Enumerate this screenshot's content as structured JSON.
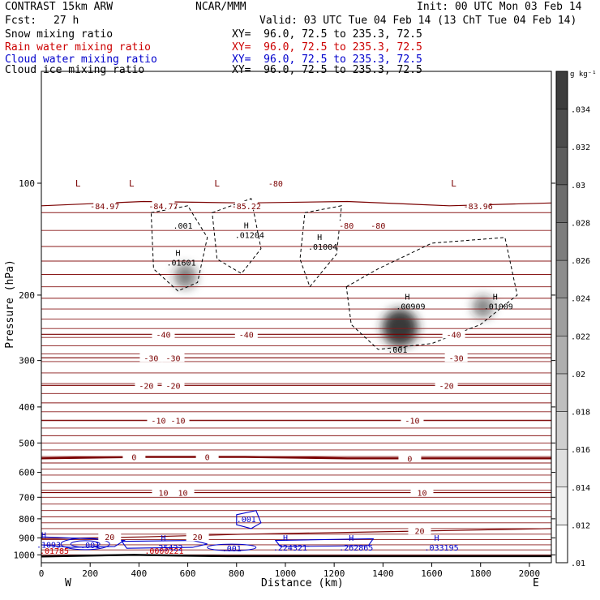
{
  "header": {
    "title": "CONTRAST 15km ARW",
    "center": "NCAR/MMM",
    "init": "Init: 00 UTC Mon 03 Feb 14",
    "fcst_label": "Fcst:",
    "fcst_value": "27 h",
    "valid": "Valid: 03 UTC Tue 04 Feb 14 (13 ChT Tue 04 Feb 14)"
  },
  "fields": [
    {
      "name": "Snow mixing ratio",
      "xy": "XY=  96.0, 72.5 to 235.3, 72.5",
      "color": "#000000"
    },
    {
      "name": "Rain water mixing ratio",
      "xy": "XY=  96.0, 72.5 to 235.3, 72.5",
      "color": "#cc0000"
    },
    {
      "name": "Cloud water mixing ratio",
      "xy": "XY=  96.0, 72.5 to 235.3, 72.5",
      "color": "#0000cc"
    },
    {
      "name": "Cloud ice mixing ratio",
      "xy": "XY=  96.0, 72.5 to 235.3, 72.5",
      "color": "#000000"
    }
  ],
  "colorbar": {
    "unit": "g kg⁻¹",
    "ticks": [
      ".01",
      ".012",
      ".014",
      ".016",
      ".018",
      ".02",
      ".022",
      ".024",
      ".026",
      ".028",
      ".03",
      ".032",
      ".034"
    ]
  },
  "chart_data": {
    "type": "heatmap",
    "xlabel": "Distance (km)",
    "ylabel": "Pressure (hPa)",
    "xlim": [
      0,
      2090
    ],
    "ylim": [
      1050,
      50
    ],
    "y_scale": "log",
    "x_ticks": [
      0,
      200,
      400,
      600,
      800,
      1000,
      1200,
      1400,
      1600,
      1800,
      2000
    ],
    "y_ticks": [
      100,
      200,
      300,
      400,
      500,
      600,
      700,
      800,
      900,
      1000
    ],
    "x_end_labels": {
      "left": "W",
      "right": "E"
    },
    "temperature_contours": [
      {
        "value": -80,
        "p": [
          115,
          112,
          113,
          112,
          115,
          113
        ]
      },
      {
        "value": -40,
        "p": [
          255,
          255,
          255,
          255,
          255,
          255
        ]
      },
      {
        "value": -30,
        "p": [
          295,
          295,
          295,
          295,
          295,
          295
        ]
      },
      {
        "value": -20,
        "p": [
          350,
          350,
          350,
          350,
          350,
          350
        ]
      },
      {
        "value": -10,
        "p": [
          435,
          435,
          435,
          435,
          435,
          435
        ]
      },
      {
        "value": 0,
        "p": [
          550,
          545,
          545,
          550,
          550,
          550
        ]
      },
      {
        "value": 10,
        "p": [
          680,
          680,
          680,
          680,
          680,
          680
        ]
      },
      {
        "value": 20,
        "p": [
          905,
          895,
          880,
          870,
          860,
          850
        ]
      }
    ],
    "temperature_labels": [
      {
        "x": 260,
        "p": 115,
        "text": "-84.97"
      },
      {
        "x": 500,
        "p": 115,
        "text": "-84.77"
      },
      {
        "x": 840,
        "p": 115,
        "text": "-85.22"
      },
      {
        "x": 1790,
        "p": 115,
        "text": "-83.96"
      },
      {
        "x": 960,
        "p": 100,
        "text": "-80"
      },
      {
        "x": 1250,
        "p": 130,
        "text": "-80"
      },
      {
        "x": 1380,
        "p": 130,
        "text": "-80"
      },
      {
        "x": 500,
        "p": 255,
        "text": "-40"
      },
      {
        "x": 840,
        "p": 255,
        "text": "-40"
      },
      {
        "x": 1690,
        "p": 255,
        "text": "-40"
      },
      {
        "x": 450,
        "p": 295,
        "text": "-30"
      },
      {
        "x": 540,
        "p": 295,
        "text": "-30"
      },
      {
        "x": 1700,
        "p": 295,
        "text": "-30"
      },
      {
        "x": 430,
        "p": 350,
        "text": "-20"
      },
      {
        "x": 540,
        "p": 350,
        "text": "-20"
      },
      {
        "x": 1660,
        "p": 350,
        "text": "-20"
      },
      {
        "x": 480,
        "p": 435,
        "text": "-10"
      },
      {
        "x": 560,
        "p": 435,
        "text": "-10"
      },
      {
        "x": 1520,
        "p": 435,
        "text": "-10"
      },
      {
        "x": 380,
        "p": 545,
        "text": "0"
      },
      {
        "x": 680,
        "p": 545,
        "text": "0"
      },
      {
        "x": 1510,
        "p": 550,
        "text": "0"
      },
      {
        "x": 500,
        "p": 680,
        "text": "10"
      },
      {
        "x": 580,
        "p": 680,
        "text": "10"
      },
      {
        "x": 1560,
        "p": 680,
        "text": "10"
      },
      {
        "x": 280,
        "p": 895,
        "text": "20"
      },
      {
        "x": 640,
        "p": 895,
        "text": "20"
      },
      {
        "x": 1550,
        "p": 860,
        "text": "20"
      }
    ],
    "lows": [
      {
        "x": 150,
        "p": 100,
        "label": "L"
      },
      {
        "x": 370,
        "p": 100,
        "label": "L"
      },
      {
        "x": 720,
        "p": 100,
        "label": "L"
      },
      {
        "x": 1690,
        "p": 100,
        "label": "L"
      }
    ],
    "cloud_ice_contours": [
      {
        "value": ".001",
        "label_at": {
          "x": 580,
          "p": 130
        }
      },
      {
        "value": ".001",
        "label_at": {
          "x": 1460,
          "p": 280
        }
      }
    ],
    "cloud_ice_maxima": [
      {
        "x": 560,
        "p": 160,
        "value": ".01601"
      },
      {
        "x": 840,
        "p": 135,
        "value": ".01204"
      },
      {
        "x": 1140,
        "p": 145,
        "value": ".01004"
      },
      {
        "x": 1500,
        "p": 210,
        "value": ".00909"
      },
      {
        "x": 1860,
        "p": 210,
        "value": ".01009"
      }
    ],
    "snow_shading": [
      {
        "x": 590,
        "p": 178,
        "max": 0.014
      },
      {
        "x": 1470,
        "p": 245,
        "max": 0.034
      },
      {
        "x": 1810,
        "p": 215,
        "max": 0.012
      }
    ],
    "cloud_water_contours": [
      {
        "value": ".001",
        "label_at": {
          "x": 840,
          "p": 800
        }
      },
      {
        "value": ".001",
        "label_at": {
          "x": 200,
          "p": 940
        }
      },
      {
        "value": ".001",
        "label_at": {
          "x": 780,
          "p": 960
        }
      }
    ],
    "cloud_water_maxima": [
      {
        "x": 10,
        "p": 920,
        "value": ".1093"
      },
      {
        "x": 500,
        "p": 935,
        "value": ".25422"
      },
      {
        "x": 1000,
        "p": 935,
        "value": ".224321"
      },
      {
        "x": 1270,
        "p": 935,
        "value": ".262865"
      },
      {
        "x": 1620,
        "p": 935,
        "value": ".033195"
      }
    ],
    "rain_maxima": [
      {
        "x": 20,
        "p": 955,
        "value": ".01785"
      },
      {
        "x": 470,
        "p": 955,
        "value": ".0000221"
      }
    ],
    "terrain_p": [
      1010,
      1005,
      1000,
      1005,
      1008,
      1008,
      1008,
      1008,
      1008,
      1008,
      1008,
      1008
    ]
  }
}
